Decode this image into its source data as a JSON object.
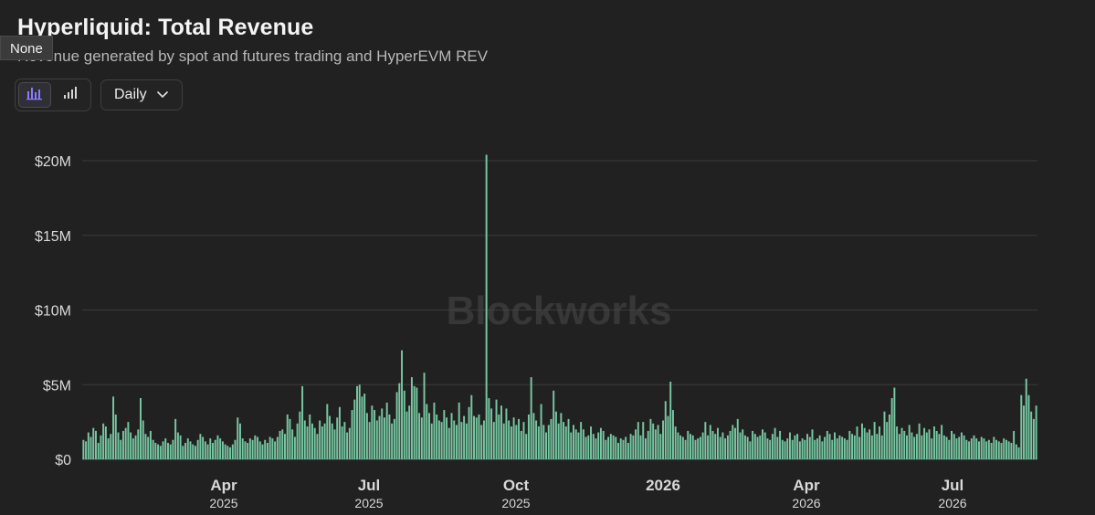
{
  "header": {
    "title": "Hyperliquid: Total Revenue",
    "subtitle": "Revenue generated by spot and futures trading and HyperEVM REV",
    "tooltip": "None"
  },
  "controls": {
    "bar_chart_icon": "bar-chart-icon",
    "signal_icon": "signal-bars-icon",
    "frequency": "Daily",
    "frequency_icon": "chevron-down-icon"
  },
  "watermark": "Blockworks",
  "colors": {
    "background": "#212121",
    "bar": "#77c7a2",
    "accent": "#8b7cff",
    "grid": "#3b3b3b"
  },
  "chart_data": {
    "type": "bar",
    "title": "Hyperliquid: Total Revenue",
    "subtitle": "Revenue generated by spot and futures trading and HyperEVM REV",
    "ylim": [
      0,
      20000000
    ],
    "y_ticks": [
      "$0",
      "$5M",
      "$10M",
      "$15M",
      "$20M"
    ],
    "x_ticks": [
      {
        "label": "Apr",
        "sub": "2025"
      },
      {
        "label": "Jul",
        "sub": "2025"
      },
      {
        "label": "Oct",
        "sub": "2025"
      },
      {
        "label": "2026",
        "sub": ""
      },
      {
        "label": "Apr",
        "sub": "2026"
      },
      {
        "label": "Jul",
        "sub": "2026"
      }
    ],
    "series": [
      {
        "values": [
          1300000,
          1200000,
          1800000,
          1500000,
          2100000,
          1900000,
          1100000,
          1600000,
          2400000,
          2200000,
          1400000,
          1700000,
          4200000,
          3000000,
          1800000,
          1300000,
          1900000,
          2100000,
          2500000,
          1800000,
          1400000,
          1600000,
          2000000,
          4100000,
          2600000,
          1700000,
          1500000,
          1900000,
          1300000,
          1100000,
          1000000,
          900000,
          1200000,
          1400000,
          1100000,
          1000000,
          1300000,
          2700000,
          1800000,
          1600000,
          900000,
          1100000,
          1400000,
          1200000,
          1000000,
          900000,
          1300000,
          1700000,
          1500000,
          1200000,
          1000000,
          1400000,
          1100000,
          1300000,
          1600000,
          1400000,
          1200000,
          1000000,
          900000,
          800000,
          1000000,
          1300000,
          2800000,
          2400000,
          1400000,
          1200000,
          1100000,
          1400000,
          1300000,
          1600000,
          1500000,
          1200000,
          1000000,
          1300000,
          1100000,
          1500000,
          1400000,
          1200000,
          1500000,
          1900000,
          2000000,
          1700000,
          3000000,
          2700000,
          2000000,
          1500000,
          2400000,
          3200000,
          4900000,
          2600000,
          2200000,
          3000000,
          2400000,
          2100000,
          1700000,
          2600000,
          2200000,
          2400000,
          3700000,
          2900000,
          2400000,
          2000000,
          2800000,
          3500000,
          2200000,
          2500000,
          1800000,
          2100000,
          3300000,
          4000000,
          4900000,
          5000000,
          4200000,
          4400000,
          3100000,
          2500000,
          3600000,
          3300000,
          2600000,
          2900000,
          3400000,
          2800000,
          3800000,
          3000000,
          2400000,
          2700000,
          4500000,
          5100000,
          7300000,
          4600000,
          3200000,
          3600000,
          5500000,
          4900000,
          4800000,
          3100000,
          2800000,
          5800000,
          3700000,
          3100000,
          2400000,
          3800000,
          3000000,
          2600000,
          2500000,
          3300000,
          2800000,
          2100000,
          3100000,
          2600000,
          2300000,
          3800000,
          2500000,
          2900000,
          2400000,
          3500000,
          4300000,
          2900000,
          2800000,
          3000000,
          2300000,
          2600000,
          20400000,
          4100000,
          3400000,
          2500000,
          4000000,
          3000000,
          3600000,
          2400000,
          3400000,
          2600000,
          2200000,
          2800000,
          2300000,
          2700000,
          1900000,
          2500000,
          1700000,
          3000000,
          5500000,
          3100000,
          2600000,
          2200000,
          3700000,
          2300000,
          1800000,
          2300000,
          2700000,
          4600000,
          3200000,
          2400000,
          3100000,
          2500000,
          2200000,
          2700000,
          1800000,
          2300000,
          2000000,
          1800000,
          2500000,
          2000000,
          1500000,
          1600000,
          2200000,
          1700000,
          1400000,
          1800000,
          2100000,
          1900000,
          1300000,
          1500000,
          1700000,
          1600000,
          1500000,
          1100000,
          1400000,
          1300000,
          1500000,
          1100000,
          1700000,
          1600000,
          2000000,
          2500000,
          1600000,
          2500000,
          1400000,
          1900000,
          2700000,
          2400000,
          2000000,
          2300000,
          1700000,
          2600000,
          3900000,
          2900000,
          5200000,
          3300000,
          2200000,
          1800000,
          1600000,
          1500000,
          1300000,
          1900000,
          1700000,
          1600000,
          1300000,
          1400000,
          1500000,
          1800000,
          2500000,
          1600000,
          2300000,
          1900000,
          1700000,
          2100000,
          1500000,
          1800000,
          1400000,
          1600000,
          1900000,
          2300000,
          2100000,
          2700000,
          1800000,
          2000000,
          1600000,
          1500000,
          1200000,
          1900000,
          1700000,
          1500000,
          1600000,
          2000000,
          1800000,
          1400000,
          1300000,
          1700000,
          2100000,
          1500000,
          1900000,
          1300000,
          1200000,
          1400000,
          1800000,
          1300000,
          1600000,
          1700000,
          1200000,
          1400000,
          1300000,
          1700000,
          1500000,
          2000000,
          1300000,
          1400000,
          1600000,
          1200000,
          1500000,
          1900000,
          1700000,
          1300000,
          1800000,
          1400000,
          1600000,
          1500000,
          1400000,
          1300000,
          1900000,
          1700000,
          1600000,
          2200000,
          1500000,
          2400000,
          2100000,
          1800000,
          2000000,
          1600000,
          2500000,
          1700000,
          2200000,
          1600000,
          3200000,
          2500000,
          3000000,
          4100000,
          4800000,
          2200000,
          1700000,
          2100000,
          1900000,
          1600000,
          2300000,
          1800000,
          1500000,
          1700000,
          2400000,
          1600000,
          2100000,
          1800000,
          2000000,
          1400000,
          2200000,
          1900000,
          1700000,
          2300000,
          1600000,
          1500000,
          1300000,
          1900000,
          1700000,
          1400000,
          1500000,
          1800000,
          1600000,
          1300000,
          1200000,
          1400000,
          1600000,
          1400000,
          1200000,
          1500000,
          1400000,
          1200000,
          1300000,
          1100000,
          1500000,
          1300000,
          1200000,
          1100000,
          1400000,
          1300000,
          1200000,
          1100000,
          1900000,
          1000000,
          800000,
          4300000,
          3600000,
          5400000,
          4300000,
          3200000,
          2700000,
          3600000
        ]
      }
    ]
  }
}
